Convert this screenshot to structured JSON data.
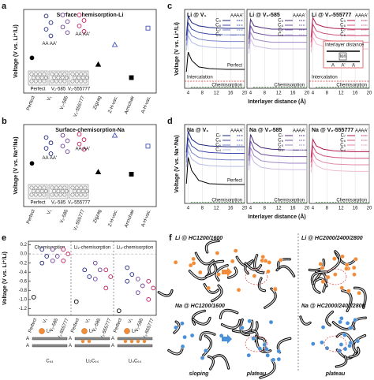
{
  "chart_data": [
    {
      "type": "dot",
      "label": "a",
      "title": "Surface-chemisorption-Li",
      "ylabel": "Voltage (V vs. Li⁺/Li)",
      "categories": [
        "Perfect",
        "V₁",
        "V₂-585",
        "V₂-555777",
        "Zigzag",
        "Z-H-vac.",
        "Armchair",
        "A-H-vac."
      ],
      "colors": [
        "#000000",
        "#1a237e",
        "#6a3d9a",
        "#c2185b",
        "#000000",
        "#3f51b5",
        "#000000",
        "#3f51b5"
      ],
      "markers": [
        "circle-filled",
        "circle-open",
        "circle-open",
        "circle-open",
        "triangle-filled",
        "triangle-open",
        "square-filled",
        "square-open"
      ],
      "values": [
        -1.0,
        [
          0.9,
          0.6,
          0.3,
          0.0
        ],
        [
          0.95,
          0.65,
          0.4,
          0.15
        ],
        [
          0.95,
          0.7,
          0.45,
          0.2
        ],
        -1.3,
        -0.4,
        -1.9,
        0.35
      ],
      "ylim": [
        -2.6,
        1.2
      ],
      "annotations": [
        "AA",
        "AA'"
      ],
      "insets": [
        "Perfect",
        "V₂-585",
        "V₂-555777"
      ]
    },
    {
      "type": "dot",
      "label": "b",
      "title": "Surface-chemisorption-Na",
      "ylabel": "Voltage (V vs. Na⁺/Na)",
      "categories": [
        "Perfect",
        "V₁",
        "V₂-585",
        "V₂-555777",
        "Zigzag",
        "Z-H-vac.",
        "Armchair",
        "A-H-vac."
      ],
      "colors": [
        "#000000",
        "#1a237e",
        "#6a3d9a",
        "#c2185b",
        "#000000",
        "#3f51b5",
        "#000000",
        "#3f51b5"
      ],
      "markers": [
        "circle-filled",
        "circle-open",
        "circle-open",
        "circle-open",
        "triangle-filled",
        "triangle-open",
        "square-filled",
        "square-open"
      ],
      "values": [
        -0.6,
        [
          0.6,
          0.35,
          0.1,
          -0.15
        ],
        [
          0.7,
          0.45,
          0.2,
          -0.05
        ],
        [
          0.75,
          0.5,
          0.3,
          0.05
        ],
        -1.0,
        0.7,
        -1.1,
        0.2
      ],
      "ylim": [
        -2.6,
        1.2
      ],
      "annotations": [
        "AA",
        "AA'"
      ],
      "insets": [
        "Perfect",
        "V₂-585",
        "V₂-555777"
      ]
    },
    {
      "type": "line",
      "label": "c",
      "title": "Li @ V₁",
      "ylabel": "Voltage (V vs. Li⁺/Li)",
      "xlabel": "Interlayer distance (Å)",
      "x": [
        3.5,
        4,
        5,
        7,
        10,
        15,
        20
      ],
      "xlim": [
        3,
        20
      ],
      "xticks": [
        4,
        8,
        12,
        16,
        20
      ],
      "ylim": [
        -2.2,
        2.6
      ],
      "legend_columns": [
        "AA",
        "AA'"
      ],
      "series": [
        {
          "name": "C₉",
          "color": "#1a237e",
          "values": [
            1.0,
            2.2,
            1.8,
            1.6,
            1.5,
            1.45,
            1.45
          ]
        },
        {
          "name": "C₈",
          "color": "#3949ab",
          "values": [
            0.7,
            1.8,
            1.4,
            1.2,
            1.1,
            1.05,
            1.05
          ]
        },
        {
          "name": "C₇",
          "color": "#7986cb",
          "values": [
            0.4,
            1.4,
            1.0,
            0.8,
            0.7,
            0.65,
            0.65
          ]
        },
        {
          "name": "C₆",
          "color": "#b3bbe6",
          "values": [
            0.1,
            1.0,
            0.6,
            0.4,
            0.3,
            0.25,
            0.25
          ]
        },
        {
          "name": "Perfect",
          "color": "#000000",
          "legend": false,
          "values": [
            -1.2,
            0.0,
            -0.5,
            -0.9,
            -1.0,
            -1.05,
            -1.05
          ]
        }
      ],
      "regions": [
        {
          "text": "Intercalation",
          "color": "#d32f2f"
        },
        {
          "text": "Chemisorption",
          "color": "#2e7d32"
        }
      ]
    },
    {
      "type": "line",
      "title": "Li @ V₂-585",
      "x": [
        3.5,
        4,
        5,
        7,
        10,
        15,
        20
      ],
      "xlim": [
        3,
        20
      ],
      "xticks": [
        4,
        8,
        12,
        16,
        20
      ],
      "ylim": [
        -2.2,
        2.6
      ],
      "legend_columns": [
        "AA",
        "AA'"
      ],
      "series": [
        {
          "name": "C₉",
          "color": "#4a2a7a",
          "values": [
            0.8,
            2.0,
            1.6,
            1.5,
            1.4,
            1.4,
            1.4
          ]
        },
        {
          "name": "C₈",
          "color": "#6e4fa0",
          "values": [
            0.5,
            1.6,
            1.2,
            1.1,
            1.0,
            1.0,
            1.0
          ]
        },
        {
          "name": "C₇",
          "color": "#9c86c4",
          "values": [
            0.2,
            1.2,
            0.8,
            0.7,
            0.6,
            0.6,
            0.6
          ]
        },
        {
          "name": "C₆",
          "color": "#cbbde3",
          "values": [
            -0.1,
            0.8,
            0.4,
            0.3,
            0.2,
            0.2,
            0.2
          ]
        }
      ],
      "regions": [
        {
          "text": "Chemisorption",
          "color": "#2e7d32"
        }
      ]
    },
    {
      "type": "line",
      "title": "Li @ V₂-555777",
      "x": [
        3.5,
        4,
        5,
        7,
        10,
        15,
        20
      ],
      "xlim": [
        3,
        20
      ],
      "xticks": [
        4,
        8,
        12,
        16,
        20
      ],
      "ylim": [
        -2.2,
        2.6
      ],
      "legend_columns": [
        "AA",
        "AA'"
      ],
      "series": [
        {
          "name": "C₉",
          "color": "#b0174f",
          "values": [
            0.9,
            2.1,
            1.7,
            1.55,
            1.45,
            1.4,
            1.4
          ]
        },
        {
          "name": "C₈",
          "color": "#d0517c",
          "values": [
            0.6,
            1.7,
            1.3,
            1.15,
            1.05,
            1.0,
            1.0
          ]
        },
        {
          "name": "C₇",
          "color": "#e38aa8",
          "values": [
            0.3,
            1.3,
            0.9,
            0.75,
            0.65,
            0.6,
            0.6
          ]
        },
        {
          "name": "C₆",
          "color": "#f0bfd0",
          "values": [
            0.0,
            0.9,
            0.5,
            0.35,
            0.25,
            0.2,
            0.2
          ]
        }
      ],
      "regions": [
        {
          "text": "Intercalation",
          "color": "#d32f2f"
        },
        {
          "text": "Chemisorption",
          "color": "#2e7d32"
        }
      ],
      "inset": [
        "Interlayer distance",
        "Ion",
        "A",
        "A'",
        "A"
      ]
    },
    {
      "type": "line",
      "label": "d",
      "title": "Na @ V₁",
      "ylabel": "Voltage (V vs. Na⁺/Na)",
      "xlabel": "Interlayer distance (Å)",
      "x": [
        3.5,
        4,
        5,
        7,
        10,
        15,
        20
      ],
      "xlim": [
        3,
        20
      ],
      "xticks": [
        4,
        8,
        12,
        16,
        20
      ],
      "ylim": [
        -2.2,
        2.6
      ],
      "legend_columns": [
        "AA",
        "AA'"
      ],
      "series": [
        {
          "name": "C₇",
          "color": "#1a237e",
          "values": [
            0.9,
            2.2,
            1.7,
            1.4,
            1.3,
            1.25,
            1.25
          ]
        },
        {
          "name": "C₆",
          "color": "#3949ab",
          "values": [
            0.6,
            1.8,
            1.3,
            1.0,
            0.9,
            0.85,
            0.85
          ]
        },
        {
          "name": "C₅",
          "color": "#7986cb",
          "values": [
            0.3,
            1.4,
            0.9,
            0.6,
            0.5,
            0.45,
            0.45
          ]
        },
        {
          "name": "C₄",
          "color": "#b3bbe6",
          "values": [
            0.0,
            1.0,
            0.5,
            0.2,
            0.1,
            0.05,
            0.05
          ]
        },
        {
          "name": "Perfect",
          "color": "#000000",
          "legend": false,
          "values": [
            -1.0,
            0.6,
            -0.2,
            -0.8,
            -1.0,
            -1.05,
            -1.05
          ]
        }
      ],
      "regions": [
        {
          "text": "Chemisorption",
          "color": "#2e7d32"
        }
      ]
    },
    {
      "type": "line",
      "title": "Na @ V₂-585",
      "x": [
        3.5,
        4,
        5,
        7,
        10,
        15,
        20
      ],
      "xlim": [
        3,
        20
      ],
      "xticks": [
        4,
        8,
        12,
        16,
        20
      ],
      "ylim": [
        -2.2,
        2.6
      ],
      "legend_columns": [
        "AA",
        "AA'"
      ],
      "series": [
        {
          "name": "C₇",
          "color": "#4a2a7a",
          "values": [
            0.7,
            2.0,
            1.5,
            1.2,
            1.1,
            1.05,
            1.05
          ]
        },
        {
          "name": "C₆",
          "color": "#6e4fa0",
          "values": [
            0.4,
            1.6,
            1.1,
            0.8,
            0.7,
            0.65,
            0.65
          ]
        },
        {
          "name": "C₅",
          "color": "#9c86c4",
          "values": [
            0.1,
            1.2,
            0.7,
            0.4,
            0.3,
            0.25,
            0.25
          ]
        },
        {
          "name": "C₄",
          "color": "#cbbde3",
          "values": [
            -0.2,
            0.8,
            0.3,
            0.0,
            -0.1,
            -0.15,
            -0.15
          ]
        }
      ],
      "regions": [
        {
          "text": "Chemisorption",
          "color": "#2e7d32"
        }
      ]
    },
    {
      "type": "line",
      "title": "Na @ V₂-555777",
      "x": [
        3.5,
        4,
        5,
        7,
        10,
        15,
        20
      ],
      "xlim": [
        3,
        20
      ],
      "xticks": [
        4,
        8,
        12,
        16,
        20
      ],
      "ylim": [
        -2.2,
        2.6
      ],
      "legend_columns": [
        "AA",
        "AA'"
      ],
      "series": [
        {
          "name": "C₇",
          "color": "#b0174f",
          "values": [
            0.6,
            1.7,
            1.3,
            1.1,
            1.0,
            0.95,
            0.95
          ]
        },
        {
          "name": "C₆",
          "color": "#d0517c",
          "values": [
            0.3,
            1.3,
            0.9,
            0.7,
            0.6,
            0.55,
            0.55
          ]
        },
        {
          "name": "C₅",
          "color": "#e38aa8",
          "values": [
            0.0,
            0.9,
            0.5,
            0.3,
            0.2,
            0.15,
            0.15
          ]
        },
        {
          "name": "C₄",
          "color": "#f0bfd0",
          "values": [
            -0.3,
            0.5,
            0.1,
            -0.1,
            -0.2,
            -0.25,
            -0.25
          ]
        }
      ],
      "regions": [
        {
          "text": "Chemisorption",
          "color": "#2e7d32"
        }
      ]
    },
    {
      "type": "dot",
      "label": "e",
      "ylabel": "Voltage (V vs. Li⁺/Li)",
      "categories": [
        "Perfect",
        "V₁",
        "V₂-585",
        "V₂-555777",
        "Perfect",
        "V₁",
        "V₂-585",
        "V₂-555777",
        "Perfect",
        "V₁",
        "V₂-585",
        "V₂-555777"
      ],
      "colors": [
        "#000000",
        "#1a237e",
        "#6a3d9a",
        "#c2185b",
        "#000000",
        "#1a237e",
        "#6a3d9a",
        "#c2185b",
        "#000000",
        "#1a237e",
        "#6a3d9a",
        "#c2185b"
      ],
      "markers": [
        "circle-open",
        "circle-open",
        "circle-open",
        "circle-open",
        "circle-open",
        "circle-open",
        "circle-open",
        "circle-open",
        "circle-open",
        "circle-open",
        "circle-open",
        "circle-open"
      ],
      "values": [
        -0.95,
        [
          0.1,
          -0.05,
          -0.2
        ],
        [
          0.1,
          -0.05,
          -0.15
        ],
        [
          0.1,
          0.0,
          -0.15
        ],
        -1.05,
        [
          -0.35,
          -0.5
        ],
        [
          -0.2,
          -0.35,
          -0.55
        ],
        [
          -0.35,
          -0.5,
          -0.75
        ],
        -1.25,
        [
          -0.3,
          -0.45,
          -0.6
        ],
        [
          -0.55,
          -0.7,
          -0.85
        ],
        [
          -0.6,
          -0.75,
          -1.0
        ]
      ],
      "ylim": [
        -1.35,
        0.28
      ],
      "yticks": [
        -1.2,
        {
          "value": -1.0,
          "label": "-1.0"
        },
        -0.8,
        -0.6,
        -0.4,
        -0.2,
        {
          "value": 0.0,
          "label": "0.0"
        },
        0.2
      ],
      "groups": [
        "Chemisorption",
        "Li₂-chemisorption",
        "Li₄-chemisorption"
      ],
      "structures": [
        "C₆₄",
        "Li₂C₆₄",
        "Li₄C₆₄"
      ],
      "structure_labels": [
        "Li",
        "A"
      ]
    }
  ],
  "panel_f": {
    "label": "f",
    "titles": [
      "Li @ HC1200/1600",
      "Li @ HC2000/2400/2800",
      "Na @ HC1200/1600",
      "Na @ HC2000/2400/2800"
    ],
    "captions": [
      "sloping",
      "plateau",
      "plateau"
    ]
  }
}
